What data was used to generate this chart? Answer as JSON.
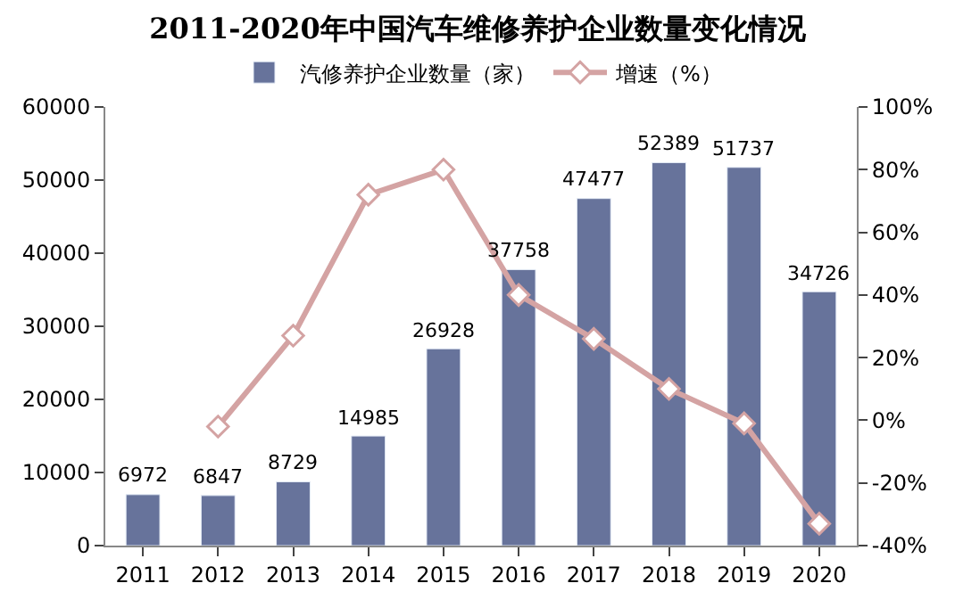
{
  "chart_data": {
    "type": "bar",
    "title": "2011-2020年中国汽车维修养护企业数量变化情况",
    "categories": [
      "2011",
      "2012",
      "2013",
      "2014",
      "2015",
      "2016",
      "2017",
      "2018",
      "2019",
      "2020"
    ],
    "series": [
      {
        "name": "汽修养护企业数量（家）",
        "color": "#67739b",
        "values": [
          6972,
          6847,
          8729,
          14985,
          26928,
          37758,
          47477,
          52389,
          51737,
          34726
        ],
        "data_labels": true
      },
      {
        "name": "增速（%）",
        "type": "line",
        "axis": "y2",
        "color": "#d4a3a3",
        "marker": "diamond",
        "values": [
          null,
          -2,
          27,
          72,
          80,
          40,
          26,
          10,
          -1,
          -33
        ]
      }
    ],
    "ylim": [
      0,
      60000
    ],
    "yticks": [
      0,
      10000,
      20000,
      30000,
      40000,
      50000,
      60000
    ],
    "y2lim": [
      -40,
      100
    ],
    "y2ticks": [
      {
        "value": -40,
        "label": "-40%"
      },
      {
        "value": -20,
        "label": "-20%"
      },
      {
        "value": 0,
        "label": "0%"
      },
      {
        "value": 20,
        "label": "20%"
      },
      {
        "value": 40,
        "label": "40%"
      },
      {
        "value": 60,
        "label": "60%"
      },
      {
        "value": 80,
        "label": "80%"
      },
      {
        "value": 100,
        "label": "100%"
      }
    ],
    "legend": "top"
  }
}
